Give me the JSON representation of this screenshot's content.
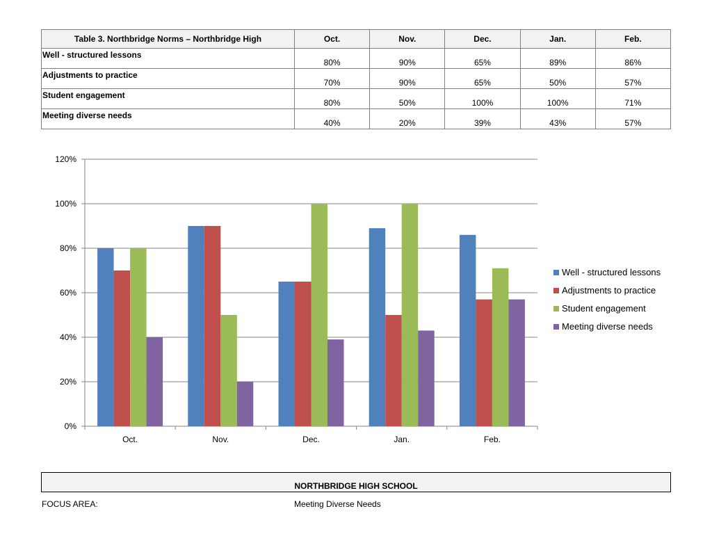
{
  "table": {
    "title": "Table 3. Northbridge Norms – Northbridge High",
    "months": [
      "Oct.",
      "Nov.",
      "Dec.",
      "Jan.",
      "Feb."
    ],
    "rows": [
      {
        "label": "Well - structured lessons",
        "values": [
          "80%",
          "90%",
          "65%",
          "89%",
          "86%"
        ]
      },
      {
        "label": "Adjustments to practice",
        "values": [
          "70%",
          "90%",
          "65%",
          "50%",
          "57%"
        ]
      },
      {
        "label": "Student engagement",
        "values": [
          "80%",
          "50%",
          "100%",
          "100%",
          "71%"
        ]
      },
      {
        "label": "Meeting diverse needs",
        "values": [
          "40%",
          "20%",
          "39%",
          "43%",
          "57%"
        ]
      }
    ]
  },
  "chart_data": {
    "type": "bar",
    "categories": [
      "Oct.",
      "Nov.",
      "Dec.",
      "Jan.",
      "Feb."
    ],
    "series": [
      {
        "name": "Well - structured lessons",
        "values": [
          80,
          90,
          65,
          89,
          86
        ],
        "color": "#4f81bd"
      },
      {
        "name": "Adjustments to practice",
        "values": [
          70,
          90,
          65,
          50,
          57
        ],
        "color": "#c0504d"
      },
      {
        "name": "Student engagement",
        "values": [
          80,
          50,
          100,
          100,
          71
        ],
        "color": "#9bbb59"
      },
      {
        "name": "Meeting diverse needs",
        "values": [
          40,
          20,
          39,
          43,
          57
        ],
        "color": "#8064a2"
      }
    ],
    "ylim": [
      0,
      120
    ],
    "yticks": [
      "0%",
      "20%",
      "40%",
      "60%",
      "80%",
      "100%",
      "120%"
    ],
    "grid": true,
    "legend": "right"
  },
  "footer": {
    "school": "NORTHBRIDGE HIGH SCHOOL",
    "focus_label": "FOCUS AREA:",
    "focus_value": "Meeting Diverse Needs"
  }
}
